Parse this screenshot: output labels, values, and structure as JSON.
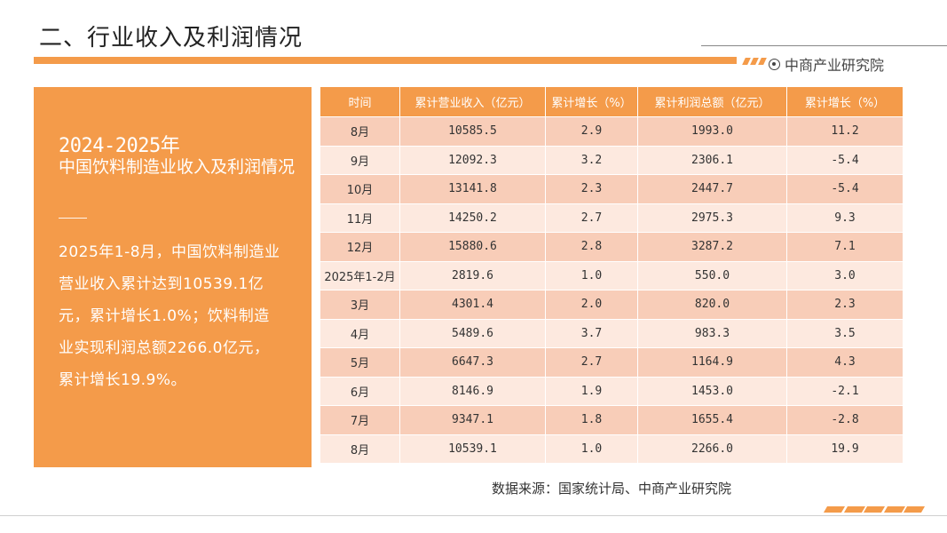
{
  "page": {
    "title": "二、行业收入及利润情况",
    "brand": "中商产业研究院"
  },
  "summary": {
    "year": "2024-2025年",
    "title": "中国饮料制造业收入及利润情况",
    "body": "2025年1-8月，中国饮料制造业营业收入累计达到10539.1亿元，累计增长1.0%；饮料制造业实现利润总额2266.0亿元，累计增长19.9%。"
  },
  "table": {
    "headers": [
      "时间",
      "累计营业收入（亿元）",
      "累计增长（%）",
      "累计利润总额（亿元）",
      "累计增长（%）"
    ],
    "rows": [
      [
        "8月",
        "10585.5",
        "2.9",
        "1993.0",
        "11.2"
      ],
      [
        "9月",
        "12092.3",
        "3.2",
        "2306.1",
        "-5.4"
      ],
      [
        "10月",
        "13141.8",
        "2.3",
        "2447.7",
        "-5.4"
      ],
      [
        "11月",
        "14250.2",
        "2.7",
        "2975.3",
        "9.3"
      ],
      [
        "12月",
        "15880.6",
        "2.8",
        "3287.2",
        "7.1"
      ],
      [
        "2025年1-2月",
        "2819.6",
        "1.0",
        "550.0",
        "3.0"
      ],
      [
        "3月",
        "4301.4",
        "2.0",
        "820.0",
        "2.3"
      ],
      [
        "4月",
        "5489.6",
        "3.7",
        "983.3",
        "3.5"
      ],
      [
        "5月",
        "6647.3",
        "2.7",
        "1164.9",
        "4.3"
      ],
      [
        "6月",
        "8146.9",
        "1.9",
        "1453.0",
        "-2.1"
      ],
      [
        "7月",
        "9347.1",
        "1.8",
        "1655.4",
        "-2.8"
      ],
      [
        "8月",
        "10539.1",
        "1.0",
        "2266.0",
        "19.9"
      ]
    ]
  },
  "source": "数据来源：国家统计局、中商产业研究院",
  "colors": {
    "accent": "#f49b4a",
    "row_odd": "#f8cdb8",
    "row_even": "#fde9df"
  }
}
